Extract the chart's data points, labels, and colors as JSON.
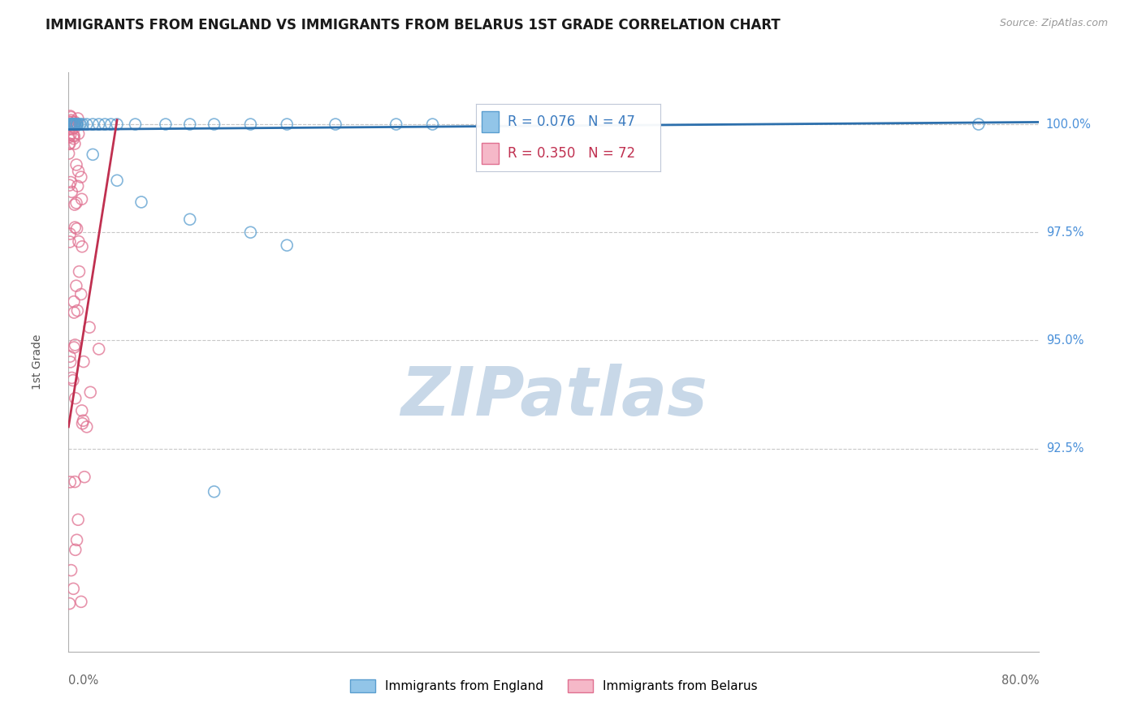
{
  "title": "IMMIGRANTS FROM ENGLAND VS IMMIGRANTS FROM BELARUS 1ST GRADE CORRELATION CHART",
  "source": "Source: ZipAtlas.com",
  "ylabel": "1st Grade",
  "ytick_labels": [
    "100.0%",
    "97.5%",
    "95.0%",
    "92.5%"
  ],
  "ytick_values": [
    1.0,
    0.975,
    0.95,
    0.925
  ],
  "xmin": 0.0,
  "xmax": 0.8,
  "ymin": 0.878,
  "ymax": 1.012,
  "england_R": 0.076,
  "england_N": 47,
  "belarus_R": 0.35,
  "belarus_N": 72,
  "england_color": "#92c5e8",
  "england_edge_color": "#5a9ecf",
  "belarus_color": "#f5b8c8",
  "belarus_edge_color": "#e07090",
  "england_line_color": "#2c6fac",
  "belarus_line_color": "#c03050",
  "watermark_color": "#c8d8e8",
  "title_color": "#1a1a1a",
  "source_color": "#999999",
  "tick_label_color": "#4a90d9",
  "axis_label_color": "#777777",
  "grid_color": "#c8c8c8",
  "legend_box_color": "#e8f0f8",
  "legend_border_color": "#c0c8d8",
  "eng_legend_text_color": "#3a7abf",
  "bel_legend_text_color": "#c03050",
  "bottom_legend_label_england": "Immigrants from England",
  "bottom_legend_label_belarus": "Immigrants from Belarus"
}
